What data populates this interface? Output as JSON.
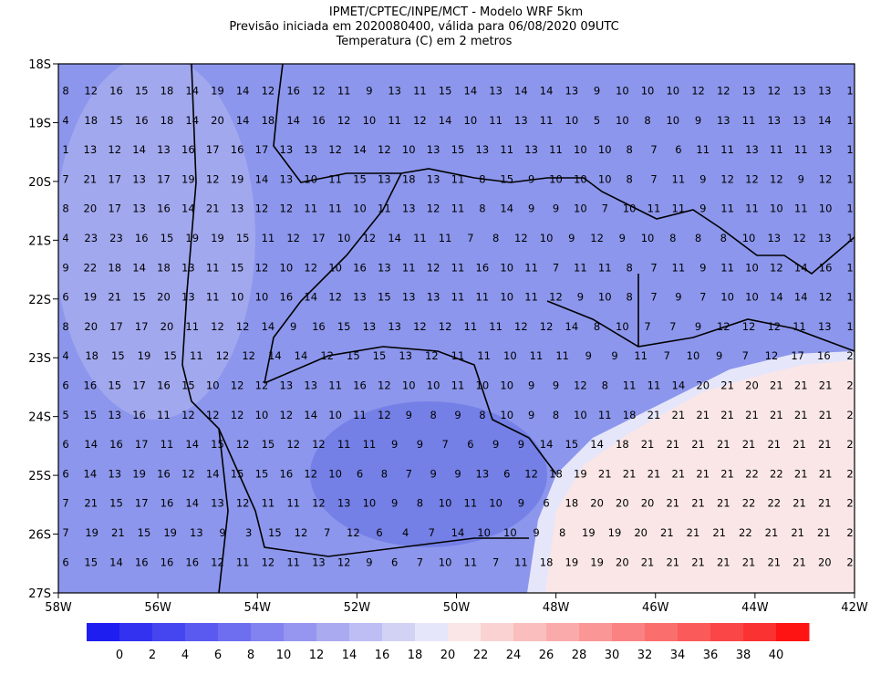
{
  "title_lines": [
    "IPMET/CPTEC/INPE/MCT - Modelo WRF 5km",
    "Previsão iniciada em 2020080400, válida para 06/08/2020 09UTC",
    "Temperatura (C) em 2 metros"
  ],
  "lat_labels": [
    "18S",
    "19S",
    "20S",
    "21S",
    "22S",
    "23S",
    "24S",
    "25S",
    "26S",
    "27S"
  ],
  "lon_labels": [
    "58W",
    "56W",
    "54W",
    "52W",
    "50W",
    "48W",
    "46W",
    "44W",
    "42W"
  ],
  "grid_values": [
    [
      8,
      12,
      16,
      15,
      18,
      14,
      19,
      14,
      12,
      16,
      12,
      11,
      9,
      13,
      11,
      15,
      14,
      13,
      14,
      14,
      13,
      9,
      10,
      10,
      10,
      12,
      12,
      13,
      12,
      13,
      13,
      1
    ],
    [
      4,
      18,
      15,
      16,
      18,
      14,
      20,
      14,
      18,
      14,
      16,
      12,
      10,
      11,
      12,
      14,
      10,
      11,
      13,
      11,
      10,
      5,
      10,
      8,
      10,
      9,
      13,
      11,
      13,
      13,
      14,
      1
    ],
    [
      1,
      13,
      12,
      14,
      13,
      16,
      17,
      16,
      17,
      13,
      13,
      12,
      14,
      12,
      10,
      13,
      15,
      13,
      11,
      13,
      11,
      10,
      10,
      8,
      7,
      6,
      11,
      11,
      13,
      11,
      11,
      13,
      1
    ],
    [
      7,
      21,
      17,
      13,
      17,
      19,
      12,
      19,
      14,
      13,
      10,
      11,
      15,
      13,
      18,
      13,
      11,
      8,
      15,
      9,
      10,
      10,
      10,
      8,
      7,
      11,
      9,
      12,
      12,
      12,
      9,
      12,
      1
    ],
    [
      8,
      20,
      17,
      13,
      16,
      14,
      21,
      13,
      12,
      12,
      11,
      11,
      10,
      11,
      13,
      12,
      11,
      8,
      14,
      9,
      9,
      10,
      7,
      10,
      11,
      11,
      9,
      11,
      11,
      10,
      11,
      10,
      1
    ],
    [
      4,
      23,
      23,
      16,
      15,
      19,
      19,
      15,
      11,
      12,
      17,
      10,
      12,
      14,
      11,
      11,
      7,
      8,
      12,
      10,
      9,
      12,
      9,
      10,
      8,
      8,
      8,
      10,
      13,
      12,
      13,
      1
    ],
    [
      9,
      22,
      18,
      14,
      18,
      13,
      11,
      15,
      12,
      10,
      12,
      10,
      16,
      13,
      11,
      12,
      11,
      16,
      10,
      11,
      7,
      11,
      11,
      8,
      7,
      11,
      9,
      11,
      10,
      12,
      14,
      16,
      1
    ],
    [
      6,
      19,
      21,
      15,
      20,
      13,
      11,
      10,
      10,
      16,
      14,
      12,
      13,
      15,
      13,
      13,
      11,
      11,
      10,
      11,
      12,
      9,
      10,
      8,
      7,
      9,
      7,
      10,
      10,
      14,
      14,
      12,
      1
    ],
    [
      8,
      20,
      17,
      17,
      20,
      11,
      12,
      12,
      14,
      9,
      16,
      15,
      13,
      13,
      12,
      12,
      11,
      11,
      12,
      12,
      14,
      8,
      10,
      7,
      7,
      9,
      12,
      12,
      12,
      11,
      13,
      1
    ],
    [
      4,
      18,
      15,
      19,
      15,
      11,
      12,
      12,
      14,
      14,
      12,
      15,
      15,
      13,
      12,
      11,
      11,
      10,
      11,
      11,
      9,
      9,
      11,
      7,
      10,
      9,
      7,
      12,
      17,
      16,
      2
    ],
    [
      6,
      16,
      15,
      17,
      16,
      15,
      10,
      12,
      12,
      13,
      13,
      11,
      16,
      12,
      10,
      10,
      11,
      10,
      10,
      9,
      9,
      12,
      8,
      11,
      11,
      14,
      20,
      21,
      20,
      21,
      21,
      21,
      2
    ],
    [
      5,
      15,
      13,
      16,
      11,
      12,
      12,
      12,
      10,
      12,
      14,
      10,
      11,
      12,
      9,
      8,
      9,
      8,
      10,
      9,
      8,
      10,
      11,
      18,
      21,
      21,
      21,
      21,
      21,
      21,
      21,
      21,
      2
    ],
    [
      6,
      14,
      16,
      17,
      11,
      14,
      15,
      12,
      15,
      12,
      12,
      11,
      11,
      9,
      9,
      7,
      6,
      9,
      9,
      14,
      15,
      14,
      18,
      21,
      21,
      21,
      21,
      21,
      21,
      21,
      21,
      2
    ],
    [
      6,
      14,
      13,
      19,
      16,
      12,
      14,
      15,
      15,
      16,
      12,
      10,
      6,
      8,
      7,
      9,
      9,
      13,
      6,
      12,
      18,
      19,
      21,
      21,
      21,
      21,
      21,
      21,
      22,
      22,
      21,
      21,
      2
    ],
    [
      7,
      21,
      15,
      17,
      16,
      14,
      13,
      12,
      11,
      11,
      12,
      13,
      10,
      9,
      8,
      10,
      11,
      10,
      9,
      6,
      18,
      20,
      20,
      20,
      21,
      21,
      21,
      22,
      22,
      21,
      21,
      2
    ],
    [
      7,
      19,
      21,
      15,
      19,
      13,
      9,
      3,
      15,
      12,
      7,
      12,
      6,
      4,
      7,
      14,
      10,
      10,
      9,
      8,
      19,
      19,
      20,
      21,
      21,
      21,
      22,
      21,
      21,
      21,
      2
    ],
    [
      6,
      15,
      14,
      16,
      16,
      16,
      12,
      11,
      12,
      11,
      13,
      12,
      9,
      6,
      7,
      10,
      11,
      7,
      11,
      18,
      19,
      19,
      20,
      21,
      21,
      21,
      21,
      21,
      21,
      21,
      20,
      2
    ]
  ],
  "colorbar": {
    "labels": [
      "0",
      "2",
      "4",
      "6",
      "8",
      "10",
      "12",
      "14",
      "16",
      "18",
      "20",
      "22",
      "24",
      "26",
      "28",
      "30",
      "32",
      "34",
      "36",
      "38",
      "40"
    ],
    "colors": [
      "#1e1ef0",
      "#3232f0",
      "#4646f0",
      "#5a5af0",
      "#6e6ef0",
      "#8282f0",
      "#9696f0",
      "#aaaaf0",
      "#bebef5",
      "#d2d2f5",
      "#e6e6fa",
      "#fae6e6",
      "#fad2d2",
      "#fabebe",
      "#faaaaa",
      "#fa9696",
      "#fa8282",
      "#fa6e6e",
      "#fa5a5a",
      "#fa4646",
      "#fa3232",
      "#ff1414"
    ]
  }
}
